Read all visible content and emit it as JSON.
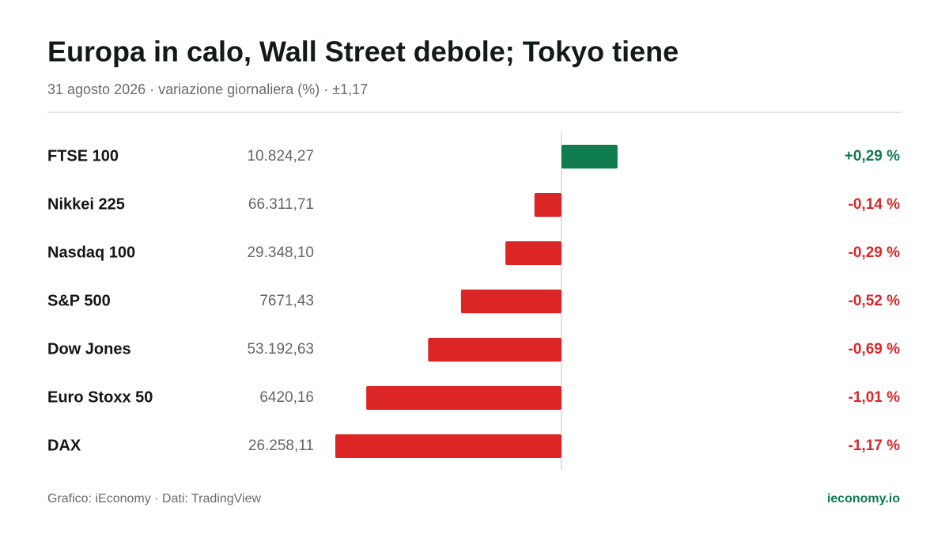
{
  "chart_data": {
    "type": "bar",
    "title": "Europa in calo, Wall Street debole; Tokyo tiene",
    "subtitle": "31 agosto 2026 · variazione giornaliera (%) · ±1,17",
    "categories": [
      "FTSE 100",
      "Nikkei 225",
      "Nasdaq 100",
      "S&P 500",
      "Dow Jones",
      "Euro Stoxx 50",
      "DAX"
    ],
    "levels": [
      "10.824,27",
      "66.311,71",
      "29.348,10",
      "7671,43",
      "53.192,63",
      "6420,16",
      "26.258,11"
    ],
    "values": [
      0.29,
      -0.14,
      -0.29,
      -0.52,
      -0.69,
      -1.01,
      -1.17
    ],
    "value_labels": [
      "+0,29 %",
      "-0,14 %",
      "-0,29 %",
      "-0,52 %",
      "-0,69 %",
      "-1,01 %",
      "-1,17 %"
    ],
    "xlim": [
      -1.17,
      1.17
    ],
    "positive_color": "#0f7b4f",
    "negative_color": "#dc2626",
    "source": "Grafico: iEconomy · Dati: TradingView",
    "brand": "ieconomy.io"
  }
}
